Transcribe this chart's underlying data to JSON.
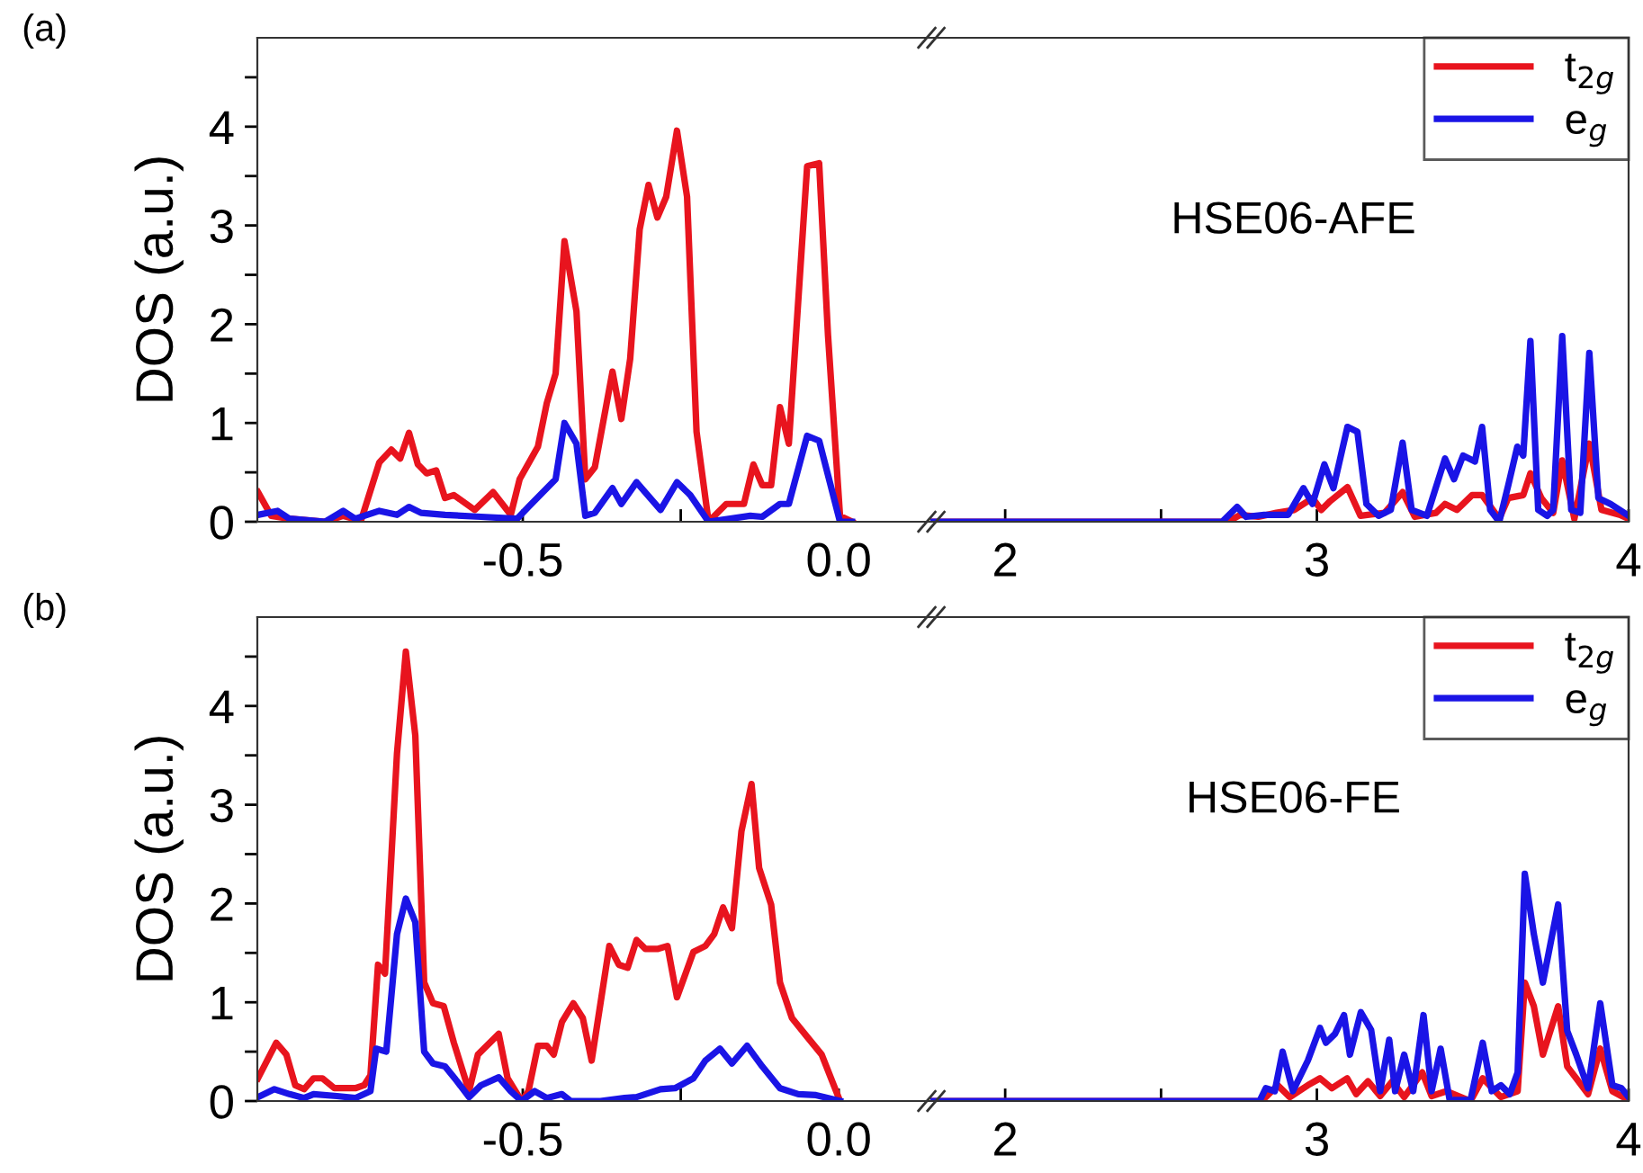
{
  "chart_data": [
    {
      "type": "line",
      "ylabel": "DOS (a.u.)",
      "annotations": [
        "(a)"
      ],
      "xlim": [
        -0.92,
        0.145
      ],
      "xticks": [
        -0.5,
        {
          "value": -0.25,
          "label": null
        },
        {
          "value": 0.0,
          "label": "0.0"
        }
      ],
      "ylim": [
        0,
        4.9
      ],
      "yticks": [
        0,
        {
          "value": 0.5,
          "label": null
        },
        1,
        {
          "value": 1.5,
          "label": null
        },
        2,
        {
          "value": 2.5,
          "label": null
        },
        3,
        {
          "value": 3.5,
          "label": null
        },
        4,
        {
          "value": 4.5,
          "label": null
        }
      ],
      "grid": false,
      "legend": false,
      "marker": "none",
      "line_style": "solid",
      "series": [
        {
          "color": "#e8141e",
          "x": [
            -0.919,
            -0.898,
            -0.869,
            -0.813,
            -0.784,
            -0.756,
            -0.727,
            -0.708,
            -0.694,
            -0.68,
            -0.666,
            -0.652,
            -0.637,
            -0.623,
            -0.609,
            -0.576,
            -0.547,
            -0.519,
            -0.505,
            -0.476,
            -0.462,
            -0.448,
            -0.434,
            -0.415,
            -0.401,
            -0.386,
            -0.358,
            -0.344,
            -0.33,
            -0.315,
            -0.301,
            -0.287,
            -0.273,
            -0.256,
            -0.24,
            -0.225,
            -0.206,
            -0.178,
            -0.15,
            -0.135,
            -0.121,
            -0.107,
            -0.093,
            -0.079,
            -0.05,
            -0.031,
            -0.017,
            0.002,
            0.021
          ],
          "values": [
            0.3,
            0.06,
            0.03,
            0,
            0.06,
            0.01,
            0.6,
            0.73,
            0.64,
            0.9,
            0.58,
            0.49,
            0.52,
            0.24,
            0.27,
            0.12,
            0.3,
            0.07,
            0.43,
            0.76,
            1.2,
            1.5,
            2.84,
            2.13,
            0.43,
            0.55,
            1.52,
            1.04,
            1.65,
            2.96,
            3.41,
            3.08,
            3.29,
            3.96,
            3.29,
            0.91,
            0,
            0.18,
            0.18,
            0.58,
            0.37,
            0.37,
            1.16,
            0.79,
            3.6,
            3.63,
            1.89,
            0.06,
            0
          ]
        },
        {
          "color": "#1a14e6",
          "x": [
            -0.919,
            -0.888,
            -0.869,
            -0.813,
            -0.784,
            -0.765,
            -0.727,
            -0.699,
            -0.68,
            -0.661,
            -0.623,
            -0.566,
            -0.509,
            -0.491,
            -0.448,
            -0.434,
            -0.415,
            -0.401,
            -0.386,
            -0.358,
            -0.344,
            -0.32,
            -0.282,
            -0.256,
            -0.235,
            -0.206,
            -0.14,
            -0.121,
            -0.093,
            -0.079,
            -0.05,
            -0.031,
            0.002,
            0.021
          ],
          "values": [
            0.07,
            0.11,
            0.03,
            0,
            0.11,
            0.03,
            0.11,
            0.07,
            0.15,
            0.09,
            0.07,
            0.05,
            0.03,
            0.15,
            0.43,
            1.0,
            0.79,
            0.06,
            0.09,
            0.34,
            0.18,
            0.4,
            0.12,
            0.4,
            0.27,
            0,
            0.06,
            0.05,
            0.18,
            0.18,
            0.87,
            0.82,
            0,
            0
          ]
        }
      ]
    },
    {
      "type": "line",
      "annotations": [
        "HSE06-AFE"
      ],
      "xlim": [
        1.76,
        4
      ],
      "xticks": [
        2,
        {
          "value": 2.5,
          "label": null
        },
        3,
        4
      ],
      "ylim": [
        0,
        4.9
      ],
      "tick_labels": "x",
      "grid": false,
      "legend": "top right",
      "marker": "none",
      "line_style": "solid",
      "series": [
        {
          "name": "t$_{2g}$",
          "color": "#e8141e",
          "x": [
            1.76,
            2.715,
            2.754,
            2.812,
            2.87,
            2.928,
            2.986,
            3.014,
            3.043,
            3.098,
            3.14,
            3.217,
            3.275,
            3.314,
            3.382,
            3.411,
            3.449,
            3.498,
            3.53,
            3.585,
            3.614,
            3.662,
            3.685,
            3.72,
            3.758,
            3.787,
            3.826,
            3.874,
            3.913,
            3.971,
            4.0
          ],
          "values": [
            0,
            0,
            0.07,
            0.05,
            0.09,
            0.12,
            0.24,
            0.12,
            0.21,
            0.35,
            0.06,
            0.09,
            0.3,
            0.05,
            0.09,
            0.18,
            0.12,
            0.27,
            0.27,
            0.03,
            0.24,
            0.27,
            0.49,
            0.24,
            0.09,
            0.62,
            0.03,
            0.79,
            0.12,
            0.07,
            0.03
          ]
        },
        {
          "name": "e$_{g}$",
          "color": "#1a14e6",
          "x": [
            1.76,
            2.696,
            2.744,
            2.773,
            2.831,
            2.908,
            2.957,
            2.986,
            3.024,
            3.053,
            3.098,
            3.13,
            3.159,
            3.198,
            3.237,
            3.275,
            3.304,
            3.353,
            3.411,
            3.44,
            3.469,
            3.507,
            3.53,
            3.556,
            3.585,
            3.614,
            3.643,
            3.662,
            3.685,
            3.71,
            3.739,
            3.758,
            3.787,
            3.816,
            3.845,
            3.874,
            3.903,
            3.942,
            3.971,
            4.0
          ],
          "values": [
            0,
            0,
            0.15,
            0.05,
            0.07,
            0.07,
            0.34,
            0.18,
            0.58,
            0.34,
            0.96,
            0.91,
            0.18,
            0.06,
            0.12,
            0.8,
            0.12,
            0.06,
            0.64,
            0.43,
            0.67,
            0.61,
            0.96,
            0.12,
            0,
            0.37,
            0.76,
            0.67,
            1.83,
            0.12,
            0.06,
            0.12,
            1.88,
            0.12,
            0.09,
            1.71,
            0.24,
            0.18,
            0.12,
            0.06
          ]
        }
      ]
    },
    {
      "type": "line",
      "ylabel": "DOS (a.u.)",
      "annotations": [
        "(b)"
      ],
      "xlim": [
        -0.92,
        0.145
      ],
      "xticks": [
        -0.5,
        {
          "value": -0.25,
          "label": null
        },
        {
          "value": 0.0,
          "label": "0.0"
        }
      ],
      "ylim": [
        0,
        4.9
      ],
      "yticks": [
        0,
        {
          "value": 0.5,
          "label": null
        },
        1,
        {
          "value": 1.5,
          "label": null
        },
        2,
        {
          "value": 2.5,
          "label": null
        },
        3,
        {
          "value": 3.5,
          "label": null
        },
        4,
        {
          "value": 4.5,
          "label": null
        }
      ],
      "grid": false,
      "legend": false,
      "marker": "none",
      "line_style": "solid",
      "series": [
        {
          "color": "#e8141e",
          "x": [
            -0.919,
            -0.89,
            -0.874,
            -0.86,
            -0.846,
            -0.831,
            -0.817,
            -0.798,
            -0.765,
            -0.751,
            -0.741,
            -0.729,
            -0.718,
            -0.699,
            -0.685,
            -0.67,
            -0.656,
            -0.642,
            -0.625,
            -0.609,
            -0.585,
            -0.571,
            -0.538,
            -0.524,
            -0.502,
            -0.491,
            -0.476,
            -0.462,
            -0.451,
            -0.438,
            -0.42,
            -0.405,
            -0.391,
            -0.363,
            -0.348,
            -0.334,
            -0.32,
            -0.306,
            -0.287,
            -0.271,
            -0.256,
            -0.23,
            -0.211,
            -0.197,
            -0.183,
            -0.169,
            -0.154,
            -0.138,
            -0.126,
            -0.107,
            -0.093,
            -0.074,
            -0.05,
            -0.027,
            0.002
          ],
          "values": [
            0.23,
            0.59,
            0.47,
            0.16,
            0.12,
            0.23,
            0.23,
            0.13,
            0.13,
            0.16,
            0.26,
            1.38,
            1.29,
            3.52,
            4.55,
            3.7,
            1.2,
            0.99,
            0.96,
            0.59,
            0.1,
            0.47,
            0.68,
            0.23,
            0,
            0.1,
            0.56,
            0.56,
            0.47,
            0.8,
            0.99,
            0.84,
            0.41,
            1.57,
            1.38,
            1.35,
            1.63,
            1.54,
            1.54,
            1.57,
            1.05,
            1.51,
            1.57,
            1.69,
            1.96,
            1.75,
            2.73,
            3.21,
            2.36,
            1.99,
            1.2,
            0.84,
            0.65,
            0.47,
            0
          ]
        },
        {
          "color": "#1a14e6",
          "x": [
            -0.919,
            -0.893,
            -0.869,
            -0.846,
            -0.831,
            -0.794,
            -0.765,
            -0.741,
            -0.732,
            -0.716,
            -0.699,
            -0.685,
            -0.67,
            -0.656,
            -0.642,
            -0.623,
            -0.604,
            -0.585,
            -0.566,
            -0.538,
            -0.519,
            -0.502,
            -0.481,
            -0.462,
            -0.438,
            -0.424,
            -0.377,
            -0.339,
            -0.32,
            -0.282,
            -0.259,
            -0.23,
            -0.211,
            -0.188,
            -0.169,
            -0.145,
            -0.121,
            -0.093,
            -0.064,
            -0.036,
            0.002
          ],
          "values": [
            0.04,
            0.12,
            0.07,
            0.03,
            0.07,
            0.05,
            0.03,
            0.1,
            0.53,
            0.5,
            1.69,
            2.05,
            1.81,
            0.5,
            0.38,
            0.35,
            0.2,
            0.04,
            0.16,
            0.24,
            0.1,
            0,
            0.1,
            0.03,
            0.07,
            0,
            0,
            0.03,
            0.04,
            0.12,
            0.13,
            0.23,
            0.41,
            0.53,
            0.38,
            0.56,
            0.35,
            0.13,
            0.07,
            0.06,
            0
          ]
        }
      ]
    },
    {
      "type": "line",
      "annotations": [
        "HSE06-FE"
      ],
      "xlim": [
        1.76,
        4
      ],
      "xticks": [
        2,
        {
          "value": 2.5,
          "label": null
        },
        3,
        4
      ],
      "ylim": [
        0,
        4.9
      ],
      "tick_labels": "x",
      "grid": false,
      "legend": "top right",
      "marker": "none",
      "line_style": "solid",
      "series": [
        {
          "name": "t$_{2g}$",
          "color": "#e8141e",
          "x": [
            1.76,
            2.816,
            2.836,
            2.874,
            2.913,
            2.971,
            3.01,
            3.048,
            3.097,
            3.126,
            3.164,
            3.203,
            3.242,
            3.28,
            3.338,
            3.368,
            3.416,
            3.493,
            3.532,
            3.59,
            3.644,
            3.667,
            3.696,
            3.725,
            3.774,
            3.803,
            3.832,
            3.87,
            3.909,
            3.948,
            4.0
          ],
          "values": [
            0,
            0,
            0.04,
            0.16,
            0.04,
            0.16,
            0.23,
            0.13,
            0.23,
            0.07,
            0.2,
            0.05,
            0.2,
            0.04,
            0.29,
            0.05,
            0.1,
            0,
            0.23,
            0.04,
            0.1,
            1.2,
            0.96,
            0.47,
            0.96,
            0.35,
            0.23,
            0.07,
            0.53,
            0.1,
            0.01
          ]
        },
        {
          "name": "e$_{g}$",
          "color": "#1a14e6",
          "x": [
            1.76,
            2.816,
            2.836,
            2.865,
            2.89,
            2.923,
            2.971,
            3.01,
            3.029,
            3.058,
            3.087,
            3.106,
            3.141,
            3.174,
            3.203,
            3.232,
            3.251,
            3.28,
            3.309,
            3.342,
            3.368,
            3.397,
            3.426,
            3.493,
            3.532,
            3.561,
            3.59,
            3.619,
            3.644,
            3.667,
            3.696,
            3.725,
            3.774,
            3.803,
            3.832,
            3.87,
            3.909,
            3.948,
            3.977,
            4.0
          ],
          "values": [
            0,
            0,
            0.13,
            0.1,
            0.5,
            0.1,
            0.41,
            0.74,
            0.59,
            0.68,
            0.87,
            0.47,
            0.9,
            0.72,
            0.1,
            0.62,
            0.1,
            0.47,
            0.1,
            0.87,
            0.1,
            0.53,
            0.01,
            0.01,
            0.59,
            0.1,
            0.16,
            0.07,
            0.29,
            2.3,
            1.69,
            1.2,
            1.99,
            0.71,
            0.47,
            0.13,
            0.99,
            0.16,
            0.13,
            0.04
          ]
        }
      ]
    }
  ]
}
